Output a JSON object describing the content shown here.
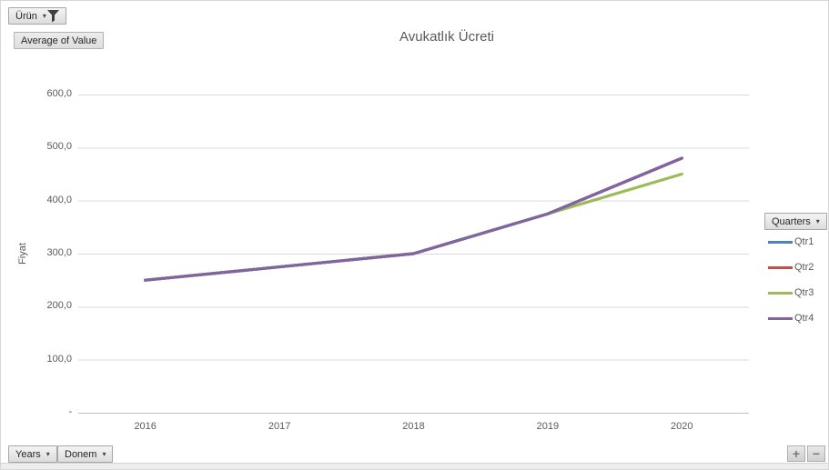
{
  "report_filter": {
    "label": "Ürün"
  },
  "value_field_button": "Average of Value",
  "chart_data": {
    "type": "line",
    "title": "Avukatlık Ücreti",
    "ylabel": "Fiyat",
    "categories": [
      "2016",
      "2017",
      "2018",
      "2019",
      "2020"
    ],
    "series": [
      {
        "name": "Qtr1",
        "color": "#4F81BD",
        "values": [
          250,
          275,
          300,
          375,
          480
        ]
      },
      {
        "name": "Qtr2",
        "color": "#C0504D",
        "values": [
          250,
          275,
          300,
          375,
          480
        ]
      },
      {
        "name": "Qtr3",
        "color": "#9BBB59",
        "values": [
          250,
          275,
          300,
          375,
          450
        ]
      },
      {
        "name": "Qtr4",
        "color": "#8064A2",
        "values": [
          250,
          275,
          300,
          375,
          480
        ]
      }
    ],
    "ylim": [
      0,
      600
    ],
    "ytick_step": 100,
    "ytick_labels": [
      "-",
      "100,0",
      "200,0",
      "300,0",
      "400,0",
      "500,0",
      "600,0"
    ],
    "grid": true,
    "legend_position": "right"
  },
  "legend_field_button": "Quarters",
  "axis_field_buttons": {
    "years": "Years",
    "donem": "Donem"
  },
  "expand_collapse": {
    "expand": "+",
    "collapse": "−"
  },
  "colors": {
    "title_text": "#595959",
    "axis_text": "#595959",
    "gridline": "#D9D9D9",
    "axis_line": "#BFBFBF"
  }
}
